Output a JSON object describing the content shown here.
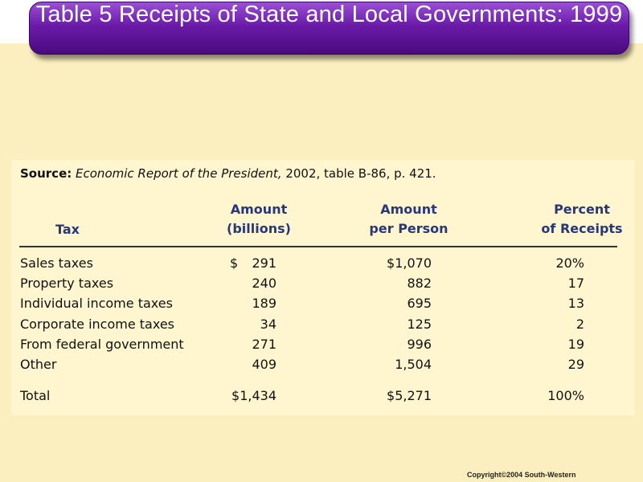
{
  "title": "Table 5 Receipts of State and Local Governments: 1999",
  "source": {
    "label": "Source:",
    "publication": "Economic Report of the President,",
    "detail": "2002, table B-86, p. 421."
  },
  "columns": {
    "tax": "Tax",
    "amount_line1": "Amount",
    "amount_line2": "(billions)",
    "per_person_line1": "Amount",
    "per_person_line2": "per Person",
    "percent_line1": "Percent",
    "percent_line2": "of Receipts"
  },
  "rows": [
    {
      "tax": "Sales taxes",
      "amount": "291",
      "per_person": "$1,070",
      "percent": "20%"
    },
    {
      "tax": "Property taxes",
      "amount": "240",
      "per_person": "882",
      "percent": "17"
    },
    {
      "tax": "Individual income taxes",
      "amount": "189",
      "per_person": "695",
      "percent": "13"
    },
    {
      "tax": "Corporate income taxes",
      "amount": "34",
      "per_person": "125",
      "percent": "2"
    },
    {
      "tax": "From federal government",
      "amount": "271",
      "per_person": "996",
      "percent": "19"
    },
    {
      "tax": "Other",
      "amount": "409",
      "per_person": "1,504",
      "percent": "29"
    }
  ],
  "amount_currency": "$",
  "total": {
    "tax": "Total",
    "amount": "$1,434",
    "per_person": "$5,271",
    "percent": "100%"
  },
  "copyright": "Copyright©2004 South-Western"
}
